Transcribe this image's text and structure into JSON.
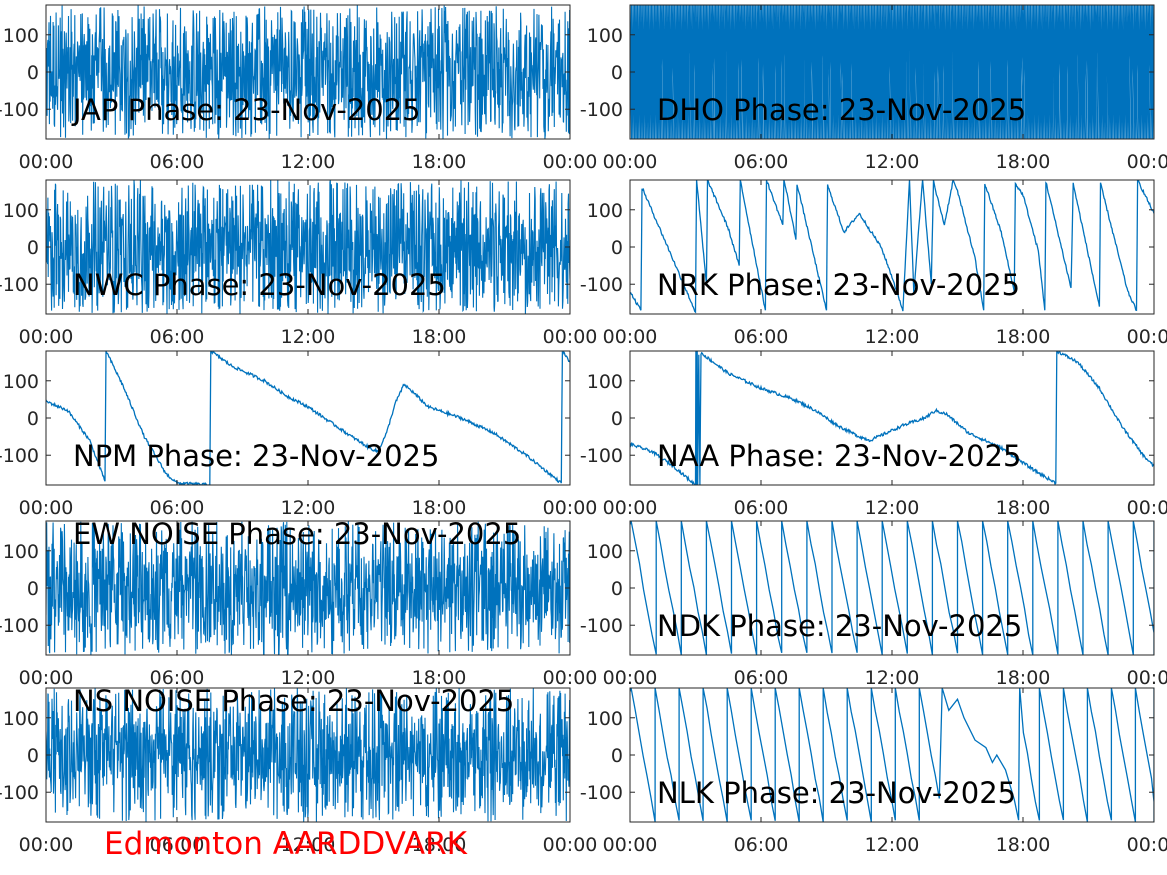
{
  "footer": "Edmonton AARDDVARK",
  "colors": {
    "trace": "#0072bd",
    "axes": "#262626",
    "footer": "#ff0000"
  },
  "chart_data": [
    {
      "type": "line",
      "title": "JAP Phase: 23-Nov-2025",
      "xticks": [
        "00:00",
        "06:00",
        "12:00",
        "18:00",
        "00:00"
      ],
      "yticks": [
        "100",
        "0",
        "-100"
      ],
      "xlim": [
        0,
        24
      ],
      "ylim": [
        -180,
        180
      ],
      "pattern": "noise",
      "series": [
        {
          "values": []
        }
      ]
    },
    {
      "type": "line",
      "title": "DHO Phase: 23-Nov-2025",
      "xticks": [
        "00:00",
        "06:00",
        "12:00",
        "18:00",
        "00:00"
      ],
      "yticks": [
        "100",
        "0",
        "-100"
      ],
      "xlim": [
        0,
        24
      ],
      "ylim": [
        -180,
        180
      ],
      "pattern": "fastwrap",
      "series": [
        {
          "values": []
        }
      ]
    },
    {
      "type": "line",
      "title": "NWC Phase: 23-Nov-2025",
      "xticks": [
        "00:00",
        "06:00",
        "12:00",
        "18:00",
        "00:00"
      ],
      "yticks": [
        "100",
        "0",
        "-100"
      ],
      "xlim": [
        0,
        24
      ],
      "ylim": [
        -180,
        180
      ],
      "pattern": "noise",
      "series": [
        {
          "values": []
        }
      ]
    },
    {
      "type": "line",
      "title": "NRK Phase: 23-Nov-2025",
      "xticks": [
        "00:00",
        "06:00",
        "12:00",
        "18:00",
        "00:00"
      ],
      "yticks": [
        "100",
        "0",
        "-100"
      ],
      "xlim": [
        0,
        24
      ],
      "ylim": [
        -180,
        180
      ],
      "pattern": "wrap",
      "series": [
        {
          "values": [
            [
              0,
              -120
            ],
            [
              0.5,
              -170
            ],
            [
              0.55,
              160
            ],
            [
              1.8,
              -10
            ],
            [
              3.0,
              -175
            ],
            [
              3.05,
              180
            ],
            [
              3.5,
              -100
            ],
            [
              3.55,
              180
            ],
            [
              4.5,
              50
            ],
            [
              5.0,
              -50
            ],
            [
              5.05,
              180
            ],
            [
              6.2,
              -170
            ],
            [
              6.25,
              180
            ],
            [
              7.0,
              60
            ],
            [
              7.05,
              180
            ],
            [
              7.2,
              140
            ],
            [
              7.6,
              20
            ],
            [
              7.65,
              170
            ],
            [
              9.0,
              -170
            ],
            [
              9.05,
              165
            ],
            [
              9.8,
              40
            ],
            [
              10.5,
              90
            ],
            [
              11.5,
              0
            ],
            [
              12.0,
              -80
            ],
            [
              12.5,
              -170
            ],
            [
              12.8,
              180
            ],
            [
              13.0,
              -120
            ],
            [
              13.4,
              180
            ],
            [
              13.8,
              -100
            ],
            [
              13.9,
              180
            ],
            [
              14.0,
              150
            ],
            [
              14.4,
              60
            ],
            [
              14.8,
              180
            ],
            [
              15.0,
              150
            ],
            [
              15.8,
              -30
            ],
            [
              16.2,
              -170
            ],
            [
              16.25,
              170
            ],
            [
              17.0,
              40
            ],
            [
              17.6,
              -120
            ],
            [
              17.65,
              170
            ],
            [
              18.0,
              140
            ],
            [
              18.7,
              -10
            ],
            [
              19.0,
              -170
            ],
            [
              19.05,
              175
            ],
            [
              20.2,
              -110
            ],
            [
              20.3,
              170
            ],
            [
              21.5,
              -160
            ],
            [
              21.55,
              170
            ],
            [
              22.8,
              -120
            ],
            [
              23.2,
              -170
            ],
            [
              23.25,
              180
            ],
            [
              24,
              90
            ]
          ]
        }
      ]
    },
    {
      "type": "line",
      "title": "NPM Phase: 23-Nov-2025",
      "xticks": [
        "00:00",
        "06:00",
        "12:00",
        "18:00",
        "00:00"
      ],
      "yticks": [
        "100",
        "0",
        "-100"
      ],
      "xlim": [
        0,
        24
      ],
      "ylim": [
        -180,
        180
      ],
      "pattern": "wrap",
      "series": [
        {
          "values": [
            [
              0,
              45
            ],
            [
              1.0,
              20
            ],
            [
              2.0,
              -60
            ],
            [
              2.7,
              -170
            ],
            [
              2.75,
              180
            ],
            [
              3.5,
              90
            ],
            [
              4.5,
              -50
            ],
            [
              5.5,
              -150
            ],
            [
              6.0,
              -175
            ],
            [
              7.5,
              -180
            ],
            [
              7.55,
              180
            ],
            [
              8.5,
              140
            ],
            [
              10.0,
              100
            ],
            [
              11.0,
              60
            ],
            [
              12.0,
              30
            ],
            [
              13.0,
              -10
            ],
            [
              14.0,
              -50
            ],
            [
              14.8,
              -80
            ],
            [
              15.2,
              -90
            ],
            [
              15.6,
              -40
            ],
            [
              16.0,
              40
            ],
            [
              16.4,
              90
            ],
            [
              16.8,
              70
            ],
            [
              17.5,
              30
            ],
            [
              19.0,
              0
            ],
            [
              20.5,
              -40
            ],
            [
              22.0,
              -100
            ],
            [
              23.6,
              -175
            ],
            [
              23.65,
              180
            ],
            [
              24,
              150
            ]
          ]
        }
      ]
    },
    {
      "type": "line",
      "title": "NAA Phase: 23-Nov-2025",
      "xticks": [
        "00:00",
        "06:00",
        "12:00",
        "18:00",
        "00:00"
      ],
      "yticks": [
        "100",
        "0",
        "-100"
      ],
      "xlim": [
        0,
        24
      ],
      "ylim": [
        -180,
        180
      ],
      "pattern": "wrap",
      "series": [
        {
          "values": [
            [
              0,
              -70
            ],
            [
              1.0,
              -90
            ],
            [
              2.0,
              -130
            ],
            [
              3.0,
              -180
            ],
            [
              3.02,
              180
            ],
            [
              3.05,
              -180
            ],
            [
              3.08,
              180
            ],
            [
              3.1,
              -180
            ],
            [
              3.15,
              170
            ],
            [
              3.2,
              -180
            ],
            [
              3.25,
              175
            ],
            [
              4.5,
              120
            ],
            [
              6.0,
              80
            ],
            [
              7.5,
              50
            ],
            [
              8.5,
              20
            ],
            [
              9.5,
              -20
            ],
            [
              10.5,
              -50
            ],
            [
              11.0,
              -60
            ],
            [
              12.5,
              -20
            ],
            [
              13.5,
              0
            ],
            [
              14.0,
              20
            ],
            [
              14.5,
              10
            ],
            [
              15.5,
              -40
            ],
            [
              17.0,
              -80
            ],
            [
              18.5,
              -140
            ],
            [
              19.5,
              -175
            ],
            [
              19.55,
              180
            ],
            [
              20.5,
              150
            ],
            [
              21.5,
              80
            ],
            [
              22.5,
              -20
            ],
            [
              23.5,
              -100
            ],
            [
              24,
              -130
            ]
          ]
        }
      ]
    },
    {
      "type": "line",
      "title": "EW NOISE Phase: 23-Nov-2025",
      "xticks": [
        "00:00",
        "06:00",
        "12:00",
        "18:00",
        "00:00"
      ],
      "yticks": [
        "100",
        "0",
        "-100"
      ],
      "xlim": [
        0,
        24
      ],
      "ylim": [
        -180,
        180
      ],
      "pattern": "noise",
      "series": [
        {
          "values": []
        }
      ]
    },
    {
      "type": "line",
      "title": "NDK Phase: 23-Nov-2025",
      "xticks": [
        "00:00",
        "06:00",
        "12:00",
        "18:00",
        "00:00"
      ],
      "yticks": [
        "100",
        "0",
        "-100"
      ],
      "xlim": [
        0,
        24
      ],
      "ylim": [
        -180,
        180
      ],
      "pattern": "sawtooth",
      "period": 1.15,
      "series": [
        {
          "values": []
        }
      ]
    },
    {
      "type": "line",
      "title": "NS NOISE Phase: 23-Nov-2025",
      "xticks": [
        "00:00",
        "06:00",
        "12:00",
        "18:00",
        "00:00"
      ],
      "yticks": [
        "100",
        "0",
        "-100"
      ],
      "xlim": [
        0,
        24
      ],
      "ylim": [
        -180,
        180
      ],
      "pattern": "noise",
      "series": [
        {
          "values": []
        }
      ]
    },
    {
      "type": "line",
      "title": "NLK Phase: 23-Nov-2025",
      "xticks": [
        "00:00",
        "06:00",
        "12:00",
        "18:00",
        "00:00"
      ],
      "yticks": [
        "100",
        "0",
        "-100"
      ],
      "xlim": [
        0,
        24
      ],
      "ylim": [
        -180,
        180
      ],
      "pattern": "sawtooth",
      "period": 1.1,
      "series": [
        {
          "values": []
        }
      ]
    }
  ]
}
